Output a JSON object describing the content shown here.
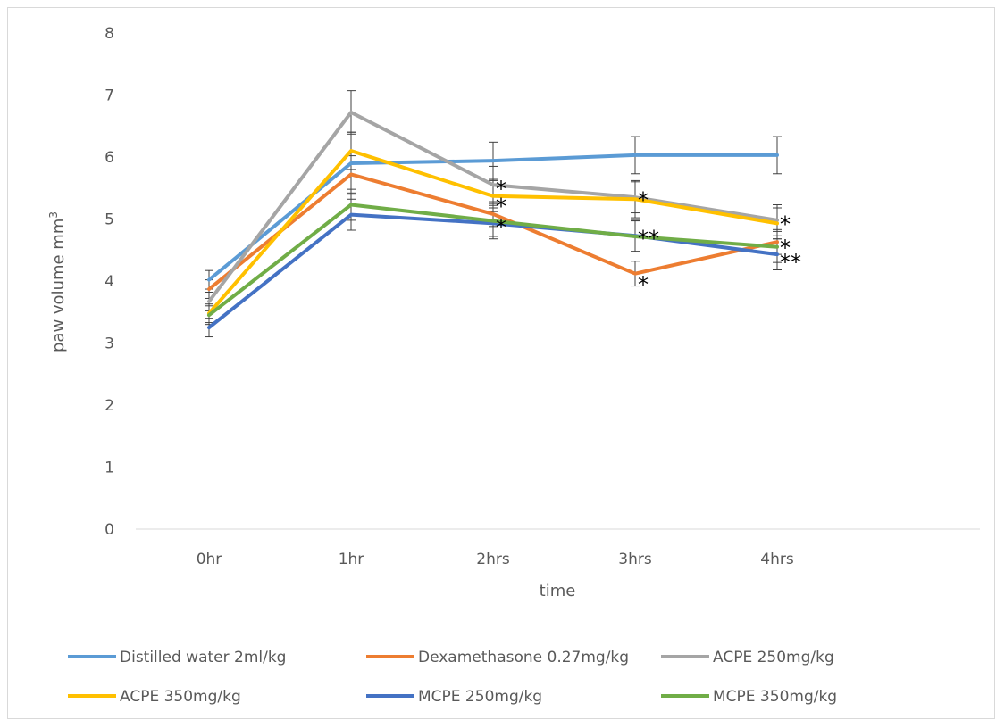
{
  "chart_data": {
    "type": "line",
    "title": "",
    "xlabel": "time",
    "ylabel": "paw volume mm",
    "ylabel_superscript": "3",
    "categories": [
      "0hr",
      "1hr",
      "2hrs",
      "3hrs",
      "4hrs"
    ],
    "ylim": [
      0,
      8
    ],
    "yticks": [
      0,
      1,
      2,
      3,
      4,
      5,
      6,
      7,
      8
    ],
    "grid": false,
    "legend_position": "bottom",
    "series": [
      {
        "name": "Distilled water 2ml/kg",
        "color": "#5b9bd5",
        "values": [
          4.02,
          5.9,
          5.94,
          6.03,
          6.03
        ],
        "errors": [
          0.15,
          0.5,
          0.3,
          0.3,
          0.3
        ]
      },
      {
        "name": "Dexamethasone 0.27mg/kg",
        "color": "#ed7d31",
        "values": [
          3.87,
          5.72,
          5.08,
          4.12,
          4.63
        ],
        "errors": [
          0.15,
          0.3,
          0.2,
          0.2,
          0.2
        ]
      },
      {
        "name": "ACPE 250mg/kg",
        "color": "#a5a5a5",
        "values": [
          3.67,
          6.72,
          5.55,
          5.35,
          4.98
        ],
        "errors": [
          0.15,
          0.35,
          0.3,
          0.25,
          0.25
        ]
      },
      {
        "name": "ACPE 350mg/kg",
        "color": "#ffc000",
        "values": [
          3.48,
          6.1,
          5.37,
          5.32,
          4.93
        ],
        "errors": [
          0.15,
          0.3,
          0.25,
          0.3,
          0.25
        ]
      },
      {
        "name": "MCPE 250mg/kg",
        "color": "#4472c4",
        "values": [
          3.25,
          5.07,
          4.93,
          4.73,
          4.43
        ],
        "errors": [
          0.15,
          0.25,
          0.25,
          0.25,
          0.25
        ]
      },
      {
        "name": "MCPE 350mg/kg",
        "color": "#70ad47",
        "values": [
          3.45,
          5.23,
          4.97,
          4.72,
          4.55
        ],
        "errors": [
          0.15,
          0.25,
          0.25,
          0.25,
          0.25
        ]
      }
    ],
    "annotations": [
      {
        "text": "*",
        "x": "2hrs",
        "y": 5.6
      },
      {
        "text": "*",
        "x": "2hrs",
        "y": 5.32
      },
      {
        "text": "*",
        "x": "2hrs",
        "y": 4.98
      },
      {
        "text": "*",
        "x": "3hrs",
        "y": 5.42
      },
      {
        "text": "**",
        "x": "3hrs",
        "y": 4.8
      },
      {
        "text": "*",
        "x": "3hrs",
        "y": 4.06
      },
      {
        "text": "*",
        "x": "4hrs",
        "y": 5.03
      },
      {
        "text": "*",
        "x": "4hrs",
        "y": 4.65
      },
      {
        "text": "**",
        "x": "4hrs",
        "y": 4.42
      }
    ]
  }
}
